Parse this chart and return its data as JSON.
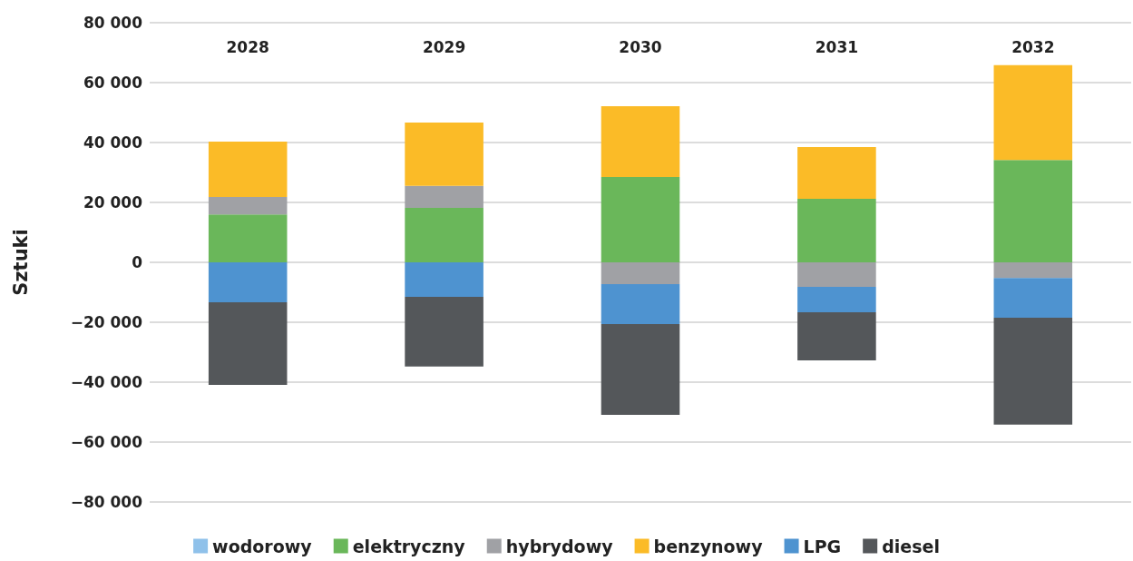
{
  "chart_data": {
    "type": "bar",
    "stacked": true,
    "ylabel": "Sztuki",
    "categories": [
      "2028",
      "2029",
      "2030",
      "2031",
      "2032"
    ],
    "series": [
      {
        "name": "wodorowy",
        "color": "#8fc1ea",
        "values": [
          0,
          0,
          0,
          0,
          0
        ]
      },
      {
        "name": "elektryczny",
        "color": "#6ab75a",
        "values": [
          16000,
          18200,
          28500,
          21200,
          34200
        ]
      },
      {
        "name": "hybrydowy",
        "color": "#a0a1a5",
        "values": [
          5800,
          7300,
          -7300,
          -8200,
          -5200
        ]
      },
      {
        "name": "benzynowy",
        "color": "#fbbb27",
        "values": [
          18500,
          21200,
          23600,
          17300,
          31600
        ]
      },
      {
        "name": "LPG",
        "color": "#4e93d0",
        "values": [
          -13300,
          -11500,
          -13300,
          -8500,
          -13300
        ]
      },
      {
        "name": "diesel",
        "color": "#54575a",
        "values": [
          -27600,
          -23300,
          -30300,
          -16000,
          -35700
        ]
      }
    ],
    "ylim": [
      -80000,
      80000
    ],
    "yticks": [
      {
        "value": -80000,
        "label": "−80 000"
      },
      {
        "value": -60000,
        "label": "−60 000"
      },
      {
        "value": -40000,
        "label": "−40 000"
      },
      {
        "value": -20000,
        "label": "−20 000"
      },
      0,
      {
        "value": 20000,
        "label": "20 000"
      },
      {
        "value": 40000,
        "label": "40 000"
      },
      {
        "value": 60000,
        "label": "60 000"
      },
      {
        "value": 80000,
        "label": "80 000"
      }
    ],
    "grid": "y",
    "legend": "bottom"
  }
}
